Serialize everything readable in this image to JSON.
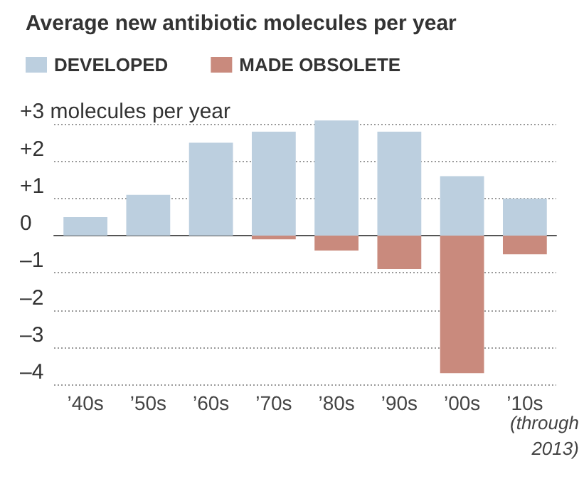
{
  "chart_data": {
    "type": "bar",
    "title": "Average new antibiotic molecules per year",
    "categories": [
      "’40s",
      "’50s",
      "’60s",
      "’70s",
      "’80s",
      "’90s",
      "’00s",
      "’10s"
    ],
    "series": [
      {
        "name": "DEVELOPED",
        "color": "#bccfdf",
        "values": [
          0.5,
          1.1,
          2.5,
          2.8,
          3.1,
          2.8,
          1.6,
          1.0
        ]
      },
      {
        "name": "MADE OBSOLETE",
        "color": "#c98a7d",
        "values": [
          null,
          null,
          null,
          -0.1,
          -0.4,
          -0.9,
          -3.7,
          -0.5
        ]
      }
    ],
    "ylim": [
      -4,
      3.2
    ],
    "yticks": [
      {
        "value": 3,
        "label": "+3 molecules per year"
      },
      {
        "value": 2,
        "label": "+2"
      },
      {
        "value": 1,
        "label": "+1"
      },
      {
        "value": 0,
        "label": "0"
      },
      {
        "value": -1,
        "label": "–1"
      },
      {
        "value": -2,
        "label": "–2"
      },
      {
        "value": -3,
        "label": "–3"
      },
      {
        "value": -4,
        "label": "–4"
      }
    ],
    "stacked": true,
    "grid": "y",
    "legend": "top left",
    "annotations": [
      "(through 2013)"
    ]
  }
}
